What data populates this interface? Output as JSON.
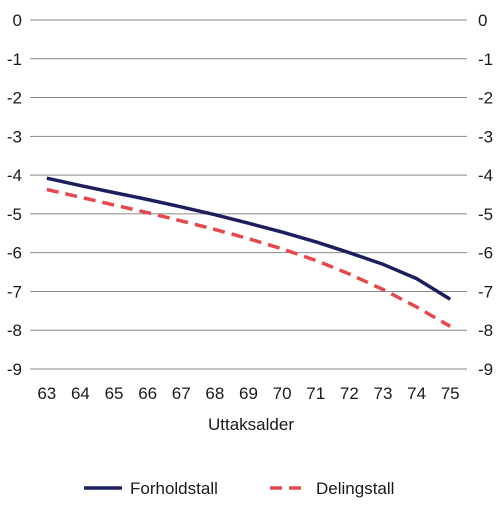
{
  "chart_data": {
    "type": "line",
    "title": "",
    "xlabel": "Uttaksalder",
    "ylabel": "",
    "x": [
      63,
      64,
      65,
      66,
      67,
      68,
      69,
      70,
      71,
      72,
      73,
      74,
      75
    ],
    "xlim": [
      62.5,
      75.5
    ],
    "ylim": [
      -9,
      0
    ],
    "yticks": [
      0,
      -1,
      -2,
      -3,
      -4,
      -5,
      -6,
      -7,
      -8,
      -9
    ],
    "y_axes": "both sides, same scale",
    "grid": "horizontal",
    "legend_position": "bottom",
    "series": [
      {
        "name": "Forholdstall",
        "style": "solid",
        "color": "#1c1f5e",
        "values": [
          -4.08,
          -4.27,
          -4.45,
          -4.63,
          -4.82,
          -5.02,
          -5.24,
          -5.47,
          -5.72,
          -6.0,
          -6.3,
          -6.67,
          -7.2
        ]
      },
      {
        "name": "Delingstall",
        "style": "dashed",
        "color": "#e5484d",
        "values": [
          -4.37,
          -4.57,
          -4.77,
          -4.97,
          -5.18,
          -5.4,
          -5.64,
          -5.9,
          -6.2,
          -6.55,
          -6.95,
          -7.4,
          -7.9
        ]
      }
    ]
  }
}
